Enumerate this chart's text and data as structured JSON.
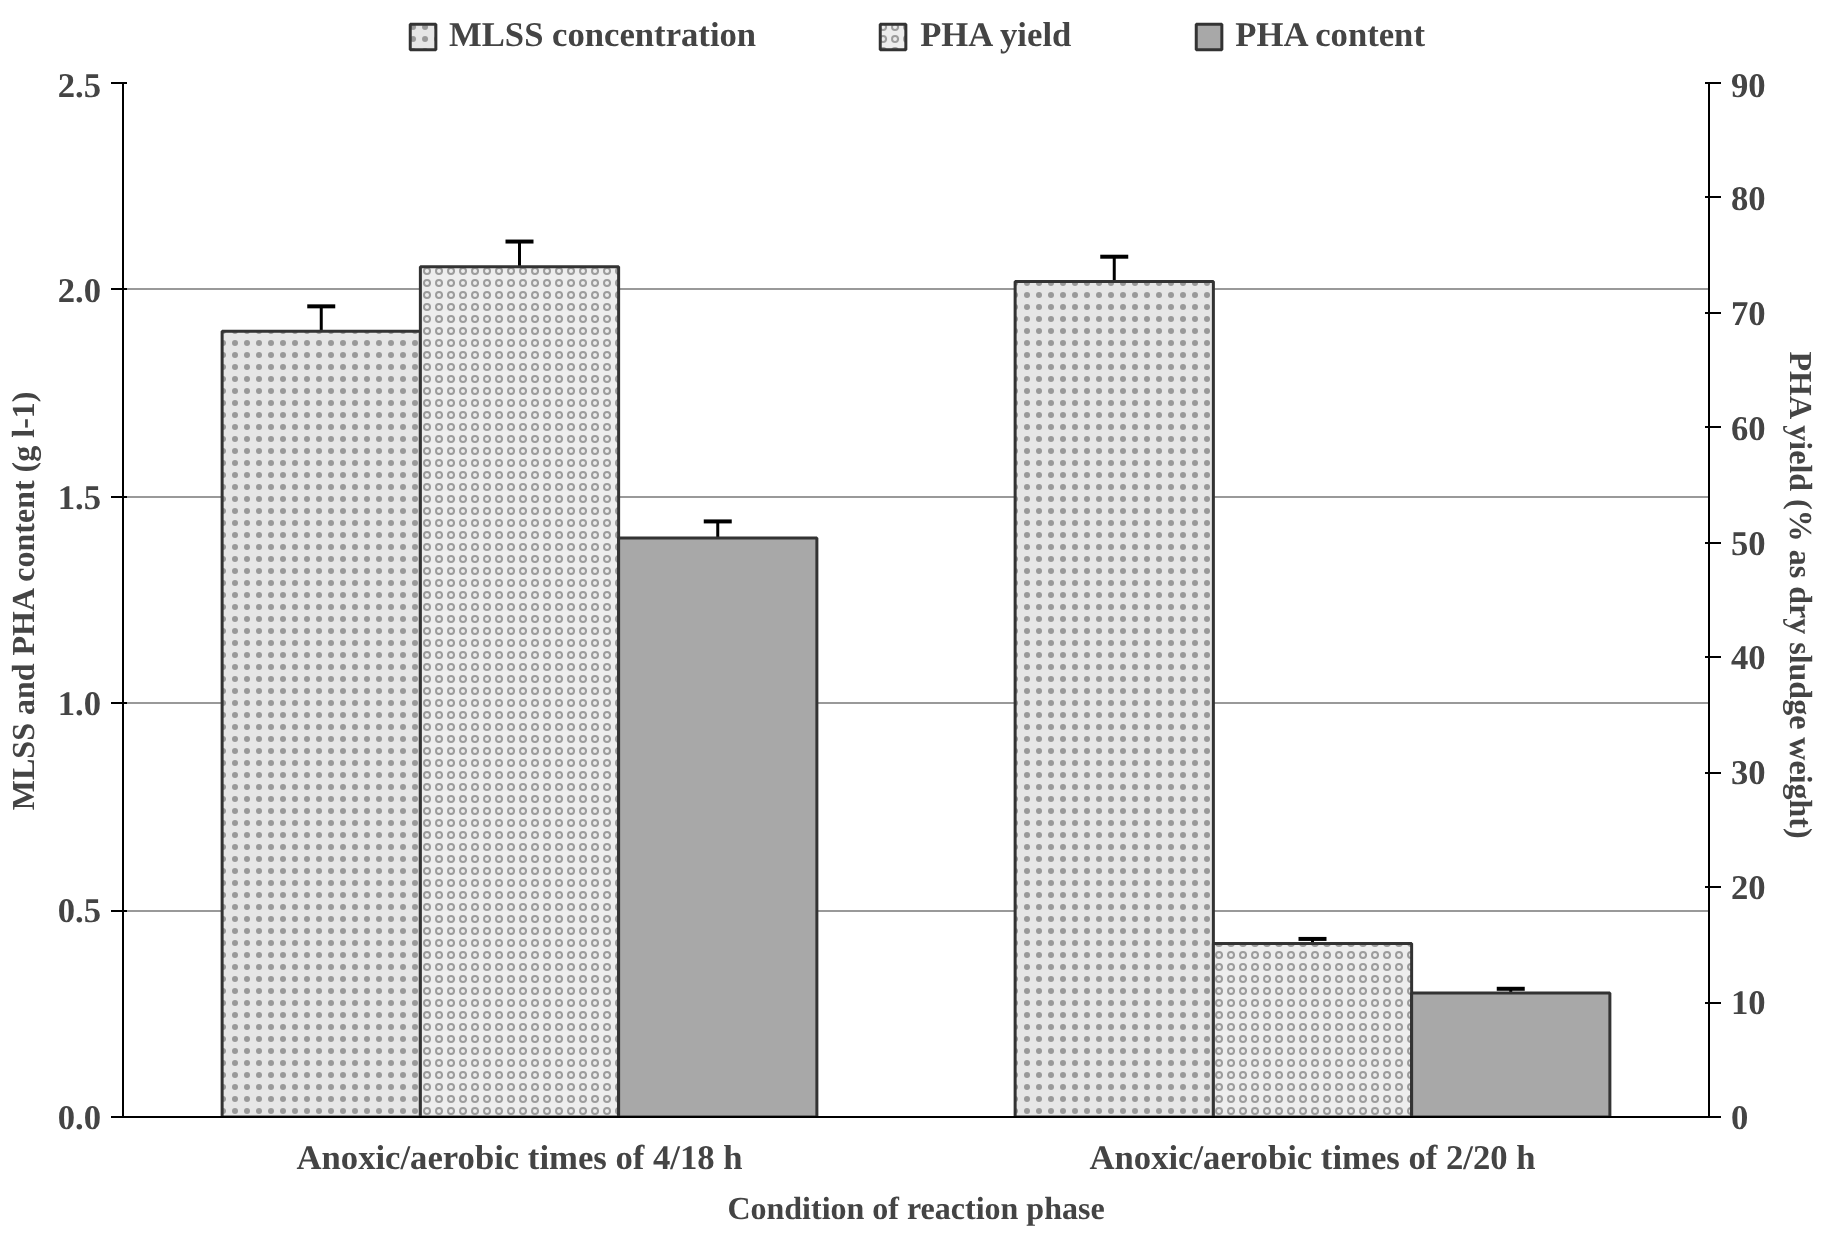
{
  "chart_data": {
    "type": "bar",
    "xlabel": "Condition of reaction phase",
    "ylabel": "MLSS and PHA content (g l-1)",
    "y2label": "PHA yield (%  as dry sludge weight)",
    "categories": [
      "Anoxic/aerobic times of 4/18 h",
      "Anoxic/aerobic times of 2/20 h"
    ],
    "series": [
      {
        "name": "MLSS concentration",
        "color": "#e6e6e6",
        "values": [
          1.9,
          2.02
        ],
        "errors": [
          0.06,
          0.06
        ]
      },
      {
        "name": "PHA yield",
        "color": "#ededed",
        "values": [
          74,
          15.1
        ],
        "errors": [
          2.2,
          0.4
        ],
        "axis": "y2"
      },
      {
        "name": "PHA content",
        "color": "#a8a8a8",
        "values": [
          1.4,
          0.3
        ],
        "errors": [
          0.04,
          0.01
        ]
      }
    ],
    "ylim": [
      0,
      2.5
    ],
    "yticks": [
      {
        "value": 0,
        "label": "0.0"
      },
      0.5,
      {
        "value": 1,
        "label": "1.0"
      },
      1.5,
      {
        "value": 2,
        "label": "2.0"
      },
      2.5
    ],
    "y2lim": [
      0,
      90
    ],
    "y2ticks": [
      0,
      10,
      20,
      30,
      40,
      50,
      60,
      70,
      80,
      90
    ],
    "grid": "y",
    "legend": "top"
  }
}
